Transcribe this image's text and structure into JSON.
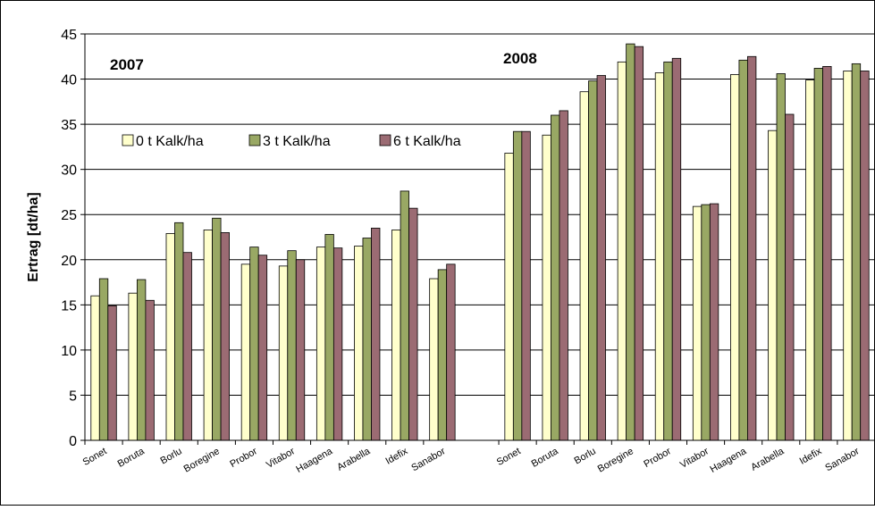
{
  "chart_data": {
    "type": "bar",
    "ylabel": "Ertrag [dt/ha]",
    "ylim": [
      0,
      45
    ],
    "yticks": [
      0,
      5,
      10,
      15,
      20,
      25,
      30,
      35,
      40,
      45
    ],
    "grid": true,
    "legend_position": "left-middle",
    "groups": [
      {
        "label": "2007",
        "categories": [
          "Sonet",
          "Boruta",
          "Borlu",
          "Boregine",
          "Probor",
          "Vitabor",
          "Haagena",
          "Arabella",
          "Idefix",
          "Sanabor"
        ],
        "series": [
          {
            "name": "0 t Kalk/ha",
            "values": [
              16.0,
              16.3,
              22.9,
              23.3,
              19.5,
              19.3,
              21.4,
              21.5,
              23.3,
              17.9
            ]
          },
          {
            "name": "3 t Kalk/ha",
            "values": [
              17.9,
              17.8,
              24.1,
              24.6,
              21.4,
              21.0,
              22.8,
              22.4,
              27.6,
              18.9
            ]
          },
          {
            "name": "6 t Kalk/ha",
            "values": [
              14.9,
              15.5,
              20.8,
              23.0,
              20.5,
              20.0,
              21.3,
              23.5,
              25.7,
              19.5
            ]
          }
        ]
      },
      {
        "label": "2008",
        "categories": [
          "Sonet",
          "Boruta",
          "Borlu",
          "Boregine",
          "Probor",
          "Vitabor",
          "Haagena",
          "Arabella",
          "Idefix",
          "Sanabor"
        ],
        "series": [
          {
            "name": "0 t Kalk/ha",
            "values": [
              31.8,
              33.8,
              38.6,
              41.9,
              40.7,
              25.9,
              40.5,
              34.3,
              39.9,
              40.9
            ]
          },
          {
            "name": "3 t Kalk/ha",
            "values": [
              34.2,
              36.0,
              39.8,
              43.9,
              41.9,
              26.1,
              42.1,
              40.6,
              41.2,
              41.7
            ]
          },
          {
            "name": "6 t Kalk/ha",
            "values": [
              34.2,
              36.5,
              40.4,
              43.6,
              42.3,
              26.2,
              42.5,
              36.1,
              41.4,
              40.9
            ]
          }
        ]
      }
    ],
    "colors": {
      "0 t Kalk/ha": "#ffffcc",
      "3 t Kalk/ha": "#99a864",
      "6 t Kalk/ha": "#9b6b73"
    }
  }
}
